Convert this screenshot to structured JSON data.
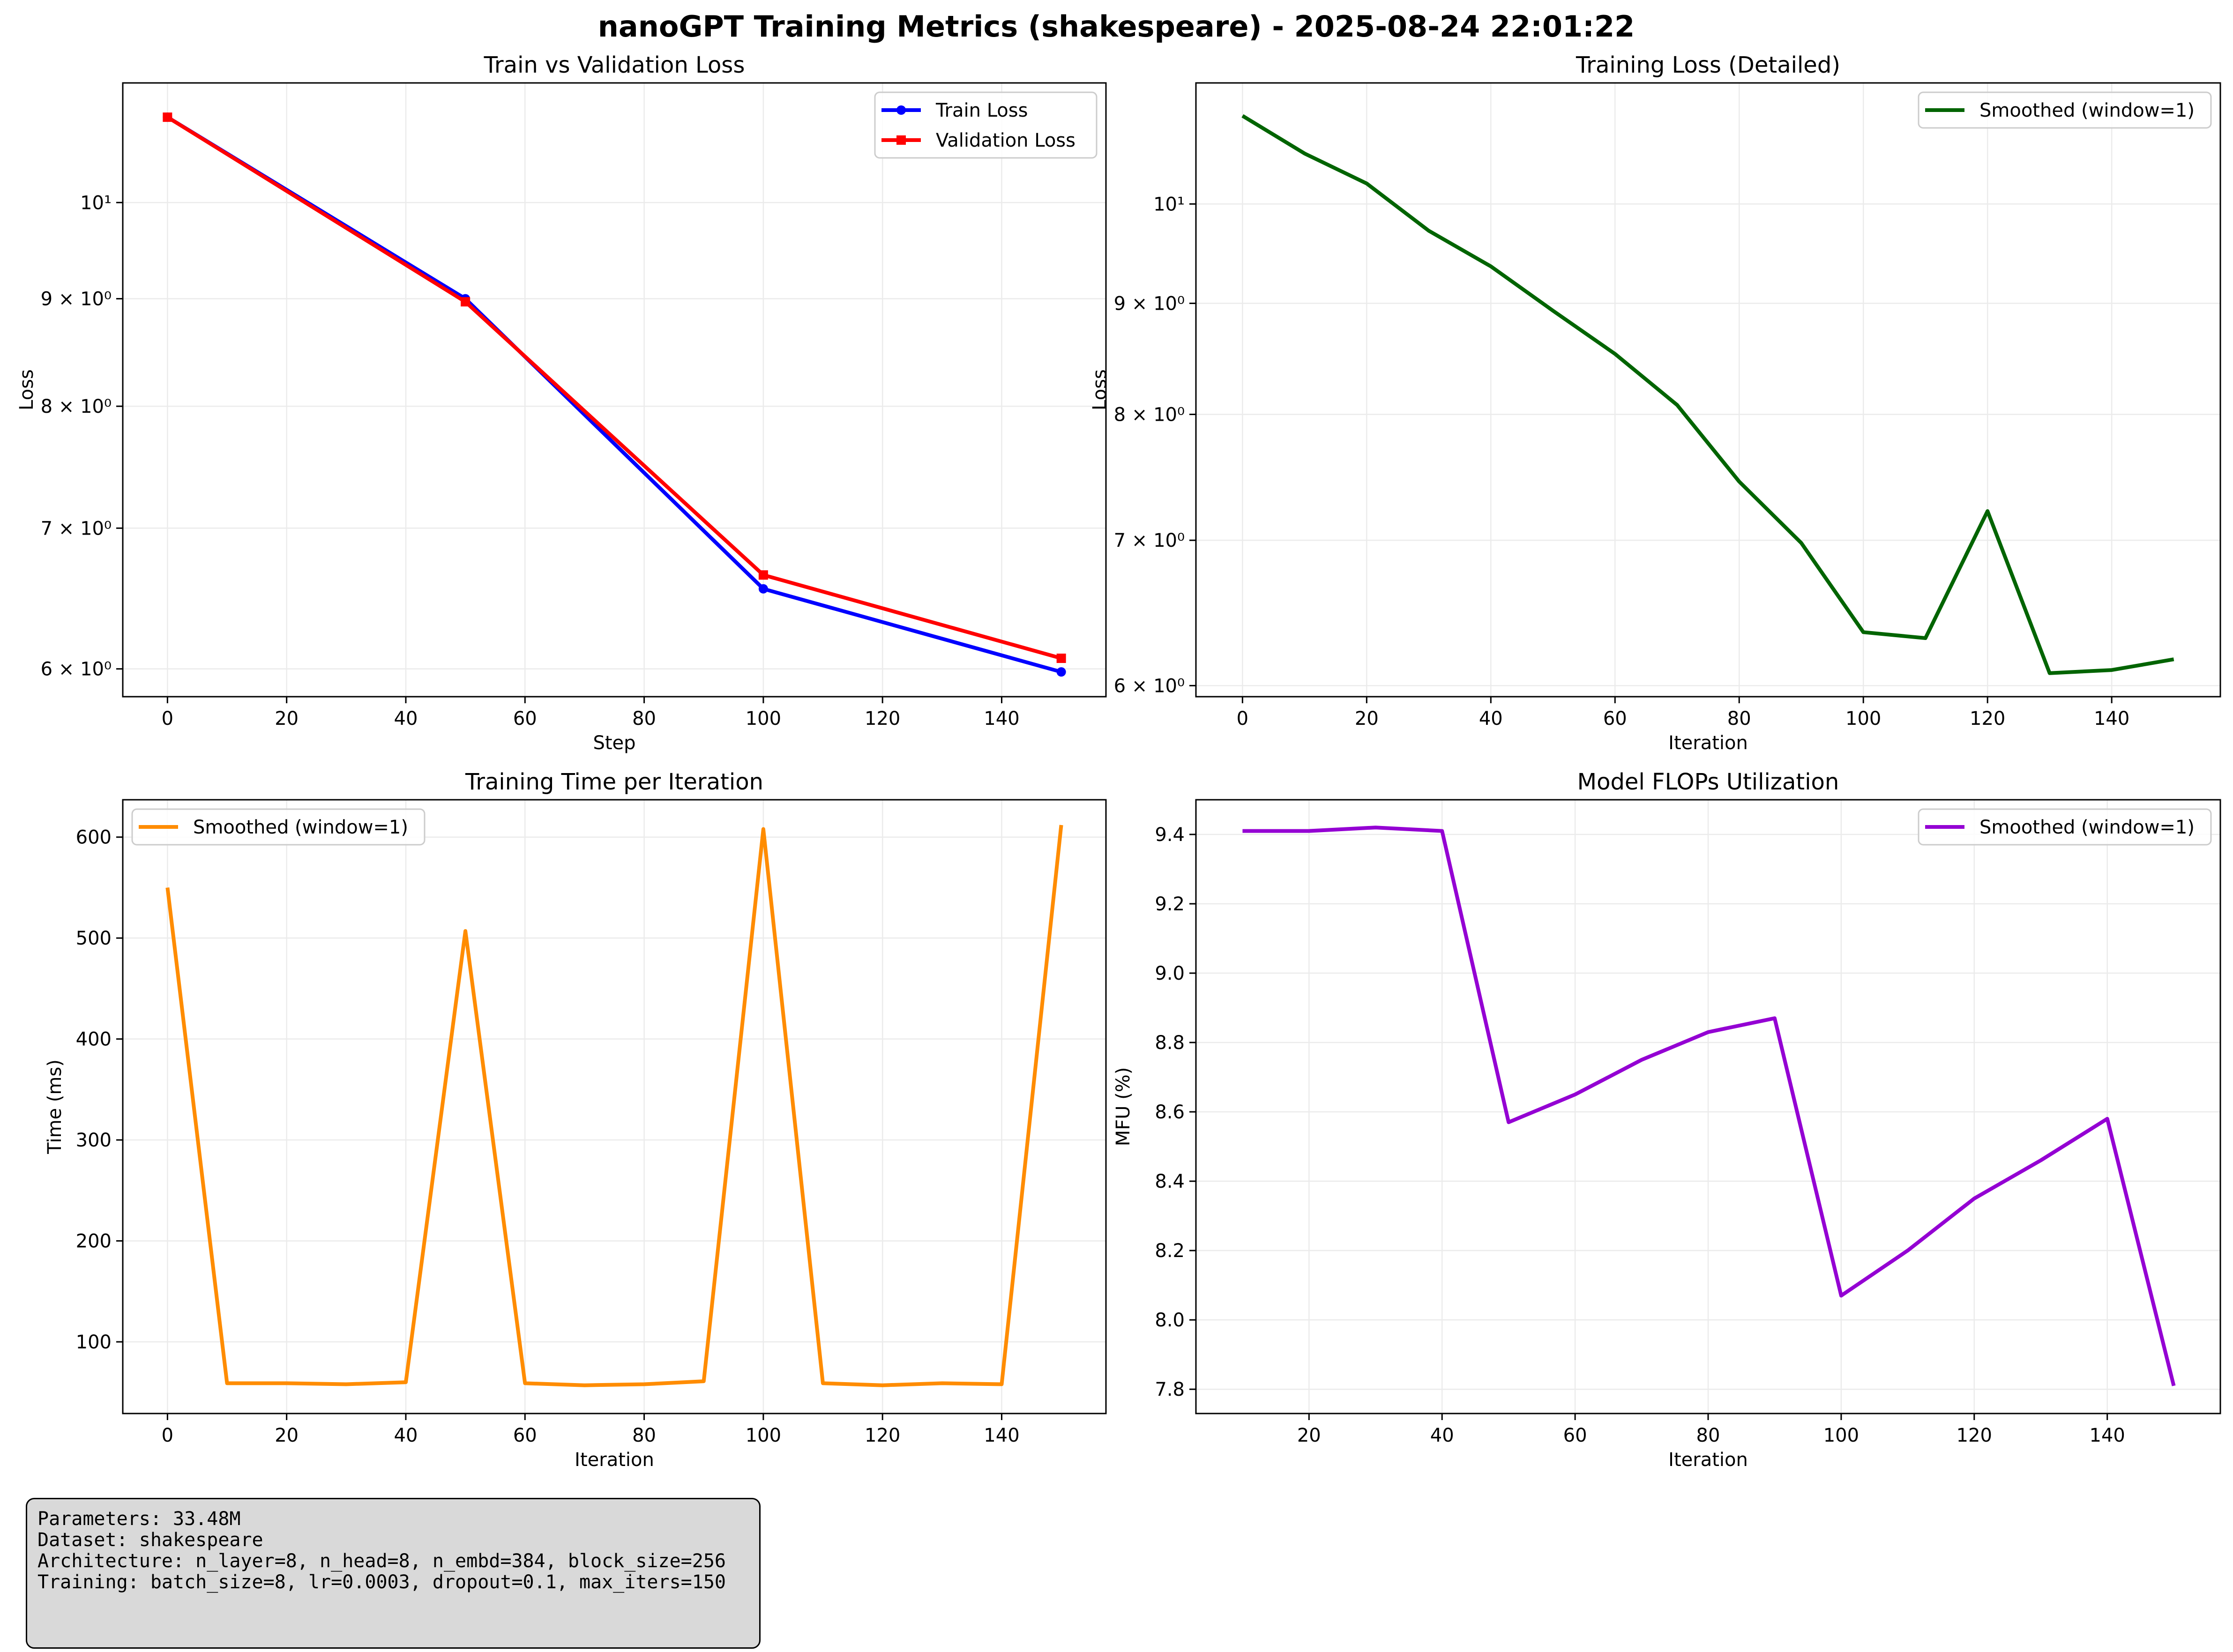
{
  "figure": {
    "suptitle": "nanoGPT Training Metrics (shakespeare) - 2025-08-24 22:01:22"
  },
  "info": {
    "line1": "Parameters: 33.48M",
    "line2": "Dataset: shakespeare",
    "line3": "Architecture: n_layer=8, n_head=8, n_embd=384, block_size=256",
    "line4": "Training: batch_size=8, lr=0.0003, dropout=0.1, max_iters=150"
  },
  "chart_data": [
    {
      "id": "train-val-loss",
      "type": "line",
      "title": "Train vs Validation Loss",
      "xlabel": "Step",
      "ylabel": "Loss",
      "yscale": "log",
      "xlim": [
        -7.5,
        157.5
      ],
      "ylim": [
        5.82,
        11.4
      ],
      "xticks": [
        0,
        20,
        40,
        60,
        80,
        100,
        120,
        140
      ],
      "yticks": [
        {
          "value": 6,
          "label": "6 × 10⁰"
        },
        {
          "value": 7,
          "label": "7 × 10⁰"
        },
        {
          "value": 8,
          "label": "8 × 10⁰"
        },
        {
          "value": 9,
          "label": "9 × 10⁰"
        },
        {
          "value": 10,
          "label": "10¹"
        }
      ],
      "grid": true,
      "legend": "top-right",
      "series": [
        {
          "name": "Train Loss",
          "color": "#0000ff",
          "marker": "circle",
          "x": [
            0,
            50,
            100,
            150
          ],
          "y": [
            10.98,
            9.0,
            6.55,
            5.98
          ]
        },
        {
          "name": "Validation Loss",
          "color": "#ff0000",
          "marker": "square",
          "x": [
            0,
            50,
            100,
            150
          ],
          "y": [
            10.98,
            8.97,
            6.65,
            6.07
          ]
        }
      ]
    },
    {
      "id": "train-loss-detailed",
      "type": "line",
      "title": "Training Loss (Detailed)",
      "xlabel": "Iteration",
      "ylabel": "Loss",
      "yscale": "log",
      "xlim": [
        -7.5,
        157.5
      ],
      "ylim": [
        5.93,
        11.37
      ],
      "xticks": [
        0,
        20,
        40,
        60,
        80,
        100,
        120,
        140
      ],
      "yticks": [
        {
          "value": 6,
          "label": "6 × 10⁰"
        },
        {
          "value": 7,
          "label": "7 × 10⁰"
        },
        {
          "value": 8,
          "label": "8 × 10⁰"
        },
        {
          "value": 9,
          "label": "9 × 10⁰"
        },
        {
          "value": 10,
          "label": "10¹"
        }
      ],
      "grid": true,
      "legend": "top-right",
      "series": [
        {
          "name": "Smoothed (window=1)",
          "color": "#006400",
          "marker": "none",
          "x": [
            0,
            10,
            20,
            30,
            40,
            50,
            60,
            70,
            80,
            90,
            100,
            110,
            120,
            130,
            140,
            150
          ],
          "y": [
            10.98,
            10.55,
            10.22,
            9.72,
            9.36,
            8.93,
            8.53,
            8.08,
            7.45,
            6.98,
            6.35,
            6.31,
            7.22,
            6.08,
            6.1,
            6.17
          ]
        }
      ]
    },
    {
      "id": "time-per-iter",
      "type": "line",
      "title": "Training Time per Iteration",
      "xlabel": "Iteration",
      "ylabel": "Time (ms)",
      "yscale": "linear",
      "xlim": [
        -7.5,
        157.5
      ],
      "ylim": [
        29,
        637
      ],
      "xticks": [
        0,
        20,
        40,
        60,
        80,
        100,
        120,
        140
      ],
      "yticks": [
        {
          "value": 100,
          "label": "100"
        },
        {
          "value": 200,
          "label": "200"
        },
        {
          "value": 300,
          "label": "300"
        },
        {
          "value": 400,
          "label": "400"
        },
        {
          "value": 500,
          "label": "500"
        },
        {
          "value": 600,
          "label": "600"
        }
      ],
      "grid": true,
      "legend": "top-left",
      "series": [
        {
          "name": "Smoothed (window=1)",
          "color": "#ff8c00",
          "marker": "none",
          "x": [
            0,
            10,
            20,
            30,
            40,
            50,
            60,
            70,
            80,
            90,
            100,
            110,
            120,
            130,
            140,
            150
          ],
          "y": [
            550,
            59,
            59,
            58,
            60,
            507,
            59,
            57,
            58,
            61,
            608,
            59,
            57,
            59,
            58,
            612
          ]
        }
      ]
    },
    {
      "id": "mfu",
      "type": "line",
      "title": "Model FLOPs Utilization",
      "xlabel": "Iteration",
      "ylabel": "MFU (%)",
      "yscale": "linear",
      "xlim": [
        3,
        157
      ],
      "ylim": [
        7.73,
        9.5
      ],
      "xticks": [
        20,
        40,
        60,
        80,
        100,
        120,
        140
      ],
      "yticks": [
        {
          "value": 7.8,
          "label": "7.8"
        },
        {
          "value": 8.0,
          "label": "8.0"
        },
        {
          "value": 8.2,
          "label": "8.2"
        },
        {
          "value": 8.4,
          "label": "8.4"
        },
        {
          "value": 8.6,
          "label": "8.6"
        },
        {
          "value": 8.8,
          "label": "8.8"
        },
        {
          "value": 9.0,
          "label": "9.0"
        },
        {
          "value": 9.2,
          "label": "9.2"
        },
        {
          "value": 9.4,
          "label": "9.4"
        }
      ],
      "grid": true,
      "legend": "top-right",
      "series": [
        {
          "name": "Smoothed (window=1)",
          "color": "#9400d3",
          "marker": "none",
          "x": [
            10,
            20,
            30,
            40,
            50,
            60,
            70,
            80,
            90,
            100,
            110,
            120,
            130,
            140,
            150
          ],
          "y": [
            9.41,
            9.41,
            9.42,
            9.41,
            8.57,
            8.65,
            8.75,
            8.83,
            8.87,
            8.07,
            8.2,
            8.35,
            8.46,
            8.58,
            7.81
          ]
        }
      ]
    }
  ]
}
